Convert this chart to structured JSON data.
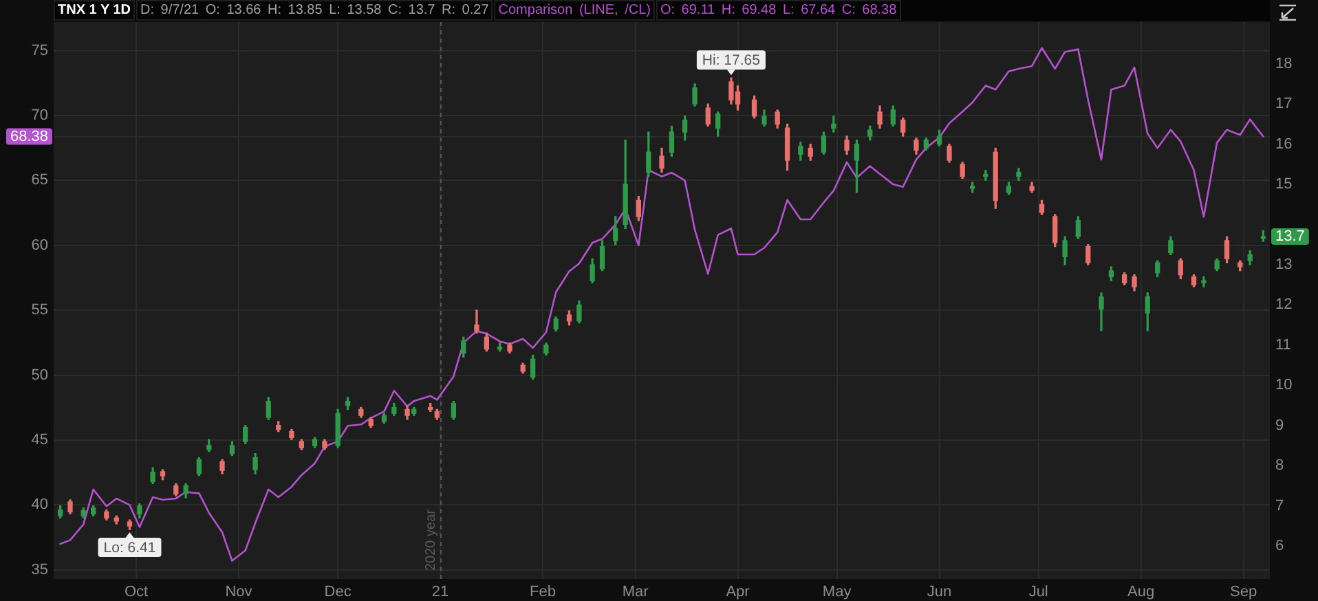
{
  "chart_data": {
    "type": "candlestick",
    "title": "TNX 1 Y 1D",
    "subtitle": "D: 9/7/21 O: 13.66 H: 13.85 L: 13.58 C: 13.7 R: 0.27",
    "x": [
      "2020-09-08",
      "2020-09-11",
      "2020-09-15",
      "2020-09-18",
      "2020-09-22",
      "2020-09-25",
      "2020-09-29",
      "2020-10-02",
      "2020-10-06",
      "2020-10-09",
      "2020-10-13",
      "2020-10-16",
      "2020-10-20",
      "2020-10-23",
      "2020-10-27",
      "2020-10-30",
      "2020-11-03",
      "2020-11-06",
      "2020-11-10",
      "2020-11-13",
      "2020-11-17",
      "2020-11-20",
      "2020-11-24",
      "2020-11-27",
      "2020-12-01",
      "2020-12-04",
      "2020-12-08",
      "2020-12-11",
      "2020-12-15",
      "2020-12-18",
      "2020-12-22",
      "2020-12-24",
      "2020-12-29",
      "2020-12-31",
      "2021-01-05",
      "2021-01-08",
      "2021-01-12",
      "2021-01-15",
      "2021-01-19",
      "2021-01-22",
      "2021-01-26",
      "2021-01-29",
      "2021-02-02",
      "2021-02-05",
      "2021-02-09",
      "2021-02-12",
      "2021-02-16",
      "2021-02-19",
      "2021-02-23",
      "2021-02-26",
      "2021-03-02",
      "2021-03-05",
      "2021-03-09",
      "2021-03-12",
      "2021-03-16",
      "2021-03-19",
      "2021-03-23",
      "2021-03-26",
      "2021-03-30",
      "2021-04-01",
      "2021-04-06",
      "2021-04-09",
      "2021-04-13",
      "2021-04-16",
      "2021-04-20",
      "2021-04-23",
      "2021-04-27",
      "2021-04-30",
      "2021-05-04",
      "2021-05-07",
      "2021-05-11",
      "2021-05-14",
      "2021-05-18",
      "2021-05-21",
      "2021-05-25",
      "2021-05-28",
      "2021-06-01",
      "2021-06-04",
      "2021-06-08",
      "2021-06-11",
      "2021-06-15",
      "2021-06-18",
      "2021-06-22",
      "2021-06-25",
      "2021-06-29",
      "2021-07-02",
      "2021-07-06",
      "2021-07-09",
      "2021-07-13",
      "2021-07-16",
      "2021-07-20",
      "2021-07-23",
      "2021-07-27",
      "2021-07-30",
      "2021-08-03",
      "2021-08-06",
      "2021-08-10",
      "2021-08-13",
      "2021-08-17",
      "2021-08-20",
      "2021-08-24",
      "2021-08-27",
      "2021-08-31",
      "2021-09-03",
      "2021-09-07"
    ],
    "xlim": [
      "2020-09-06",
      "2021-09-09"
    ],
    "xticks": [
      {
        "value": "2020-10-01",
        "label": "Oct"
      },
      {
        "value": "2020-11-01",
        "label": "Nov"
      },
      {
        "value": "2020-12-01",
        "label": "Dec"
      },
      {
        "value": "2021-01-01",
        "label": "21"
      },
      {
        "value": "2021-02-01",
        "label": "Feb"
      },
      {
        "value": "2021-03-01",
        "label": "Mar"
      },
      {
        "value": "2021-04-01",
        "label": "Apr"
      },
      {
        "value": "2021-05-01",
        "label": "May"
      },
      {
        "value": "2021-06-01",
        "label": "Jun"
      },
      {
        "value": "2021-07-01",
        "label": "Jul"
      },
      {
        "value": "2021-08-01",
        "label": "Aug"
      },
      {
        "value": "2021-09-01",
        "label": "Sep"
      }
    ],
    "ylim": [
      34.3,
      77.2
    ],
    "yticks": [
      35,
      40,
      45,
      50,
      55,
      60,
      65,
      68.38,
      70,
      75
    ],
    "y2lim": [
      5.18,
      19.04
    ],
    "y2ticks": [
      6,
      7,
      8,
      9,
      10,
      11,
      12,
      13,
      13.7,
      15,
      16,
      17,
      18
    ],
    "grid": true,
    "legend": "top left",
    "ref_lines": [
      {
        "axis": "x",
        "value": "2021-01-01",
        "label": "2020 year",
        "color": "#5a5a5a",
        "line_style": "dashed"
      }
    ],
    "annotations": [
      "O: 69.11 H: 69.48 L: 67.64 C: 68.38"
    ],
    "series": [
      {
        "axis": "y2",
        "ohlc": [
          [
            6.75,
            7.0,
            6.7,
            6.9
          ],
          [
            7.1,
            7.15,
            6.8,
            6.85
          ],
          [
            6.75,
            6.95,
            6.7,
            6.88
          ],
          [
            6.8,
            7.0,
            6.75,
            6.95
          ],
          [
            6.85,
            6.9,
            6.65,
            6.7
          ],
          [
            6.7,
            6.75,
            6.55,
            6.62
          ],
          [
            6.6,
            6.65,
            6.41,
            6.5
          ],
          [
            6.8,
            7.05,
            6.7,
            7.0
          ],
          [
            7.6,
            7.95,
            7.55,
            7.84
          ],
          [
            7.85,
            7.9,
            7.65,
            7.75
          ],
          [
            7.5,
            7.55,
            7.25,
            7.3
          ],
          [
            7.3,
            7.55,
            7.2,
            7.5
          ],
          [
            7.8,
            8.2,
            7.75,
            8.15
          ],
          [
            8.4,
            8.65,
            8.35,
            8.5
          ],
          [
            8.1,
            8.15,
            7.8,
            7.88
          ],
          [
            8.3,
            8.6,
            8.25,
            8.5
          ],
          [
            8.6,
            9.0,
            8.55,
            8.95
          ],
          [
            7.9,
            8.3,
            7.8,
            8.2
          ],
          [
            9.2,
            9.7,
            9.15,
            9.6
          ],
          [
            9.0,
            9.1,
            8.85,
            8.9
          ],
          [
            8.85,
            8.9,
            8.65,
            8.7
          ],
          [
            8.6,
            8.65,
            8.4,
            8.45
          ],
          [
            8.5,
            8.7,
            8.45,
            8.65
          ],
          [
            8.6,
            8.65,
            8.4,
            8.45
          ],
          [
            8.5,
            9.4,
            8.45,
            9.3
          ],
          [
            9.5,
            9.7,
            9.4,
            9.6
          ],
          [
            9.4,
            9.45,
            9.2,
            9.25
          ],
          [
            9.15,
            9.2,
            8.95,
            9.0
          ],
          [
            9.1,
            9.3,
            9.05,
            9.25
          ],
          [
            9.3,
            9.55,
            9.25,
            9.45
          ],
          [
            9.4,
            9.5,
            9.15,
            9.25
          ],
          [
            9.3,
            9.45,
            9.25,
            9.4
          ],
          [
            9.45,
            9.55,
            9.35,
            9.4
          ],
          [
            9.35,
            9.4,
            9.15,
            9.2
          ],
          [
            9.2,
            9.6,
            9.15,
            9.55
          ],
          [
            10.8,
            11.2,
            10.7,
            11.1
          ],
          [
            11.5,
            11.87,
            11.3,
            11.35
          ],
          [
            11.2,
            11.3,
            10.85,
            10.9
          ],
          [
            10.9,
            11.05,
            10.85,
            10.95
          ],
          [
            11.0,
            11.05,
            10.8,
            10.85
          ],
          [
            10.5,
            10.55,
            10.3,
            10.35
          ],
          [
            10.2,
            10.75,
            10.15,
            10.65
          ],
          [
            10.8,
            11.05,
            10.75,
            11.0
          ],
          [
            11.4,
            11.7,
            11.35,
            11.65
          ],
          [
            11.75,
            11.85,
            11.5,
            11.6
          ],
          [
            11.6,
            12.1,
            11.55,
            12.0
          ],
          [
            12.6,
            13.15,
            12.55,
            13.0
          ],
          [
            12.9,
            13.6,
            12.85,
            13.45
          ],
          [
            13.6,
            14.2,
            13.5,
            13.9
          ],
          [
            14.0,
            16.1,
            13.9,
            15.0
          ],
          [
            14.6,
            14.7,
            14.1,
            14.2
          ],
          [
            15.3,
            16.3,
            15.2,
            15.8
          ],
          [
            15.7,
            15.9,
            15.3,
            15.4
          ],
          [
            15.8,
            16.45,
            15.7,
            16.3
          ],
          [
            16.3,
            16.7,
            16.1,
            16.6
          ],
          [
            17.0,
            17.5,
            16.95,
            17.4
          ],
          [
            16.9,
            17.0,
            16.45,
            16.5
          ],
          [
            16.4,
            16.8,
            16.2,
            16.75
          ],
          [
            17.55,
            17.65,
            17.0,
            17.1
          ],
          [
            17.3,
            17.45,
            16.85,
            17.0
          ],
          [
            17.1,
            17.2,
            16.65,
            16.7
          ],
          [
            16.5,
            16.85,
            16.45,
            16.7
          ],
          [
            16.8,
            16.85,
            16.4,
            16.5
          ],
          [
            16.4,
            16.5,
            15.35,
            15.6
          ],
          [
            15.75,
            16.05,
            15.6,
            15.95
          ],
          [
            15.9,
            16.0,
            15.6,
            15.7
          ],
          [
            15.8,
            16.3,
            15.75,
            16.2
          ],
          [
            16.4,
            16.7,
            16.3,
            16.5
          ],
          [
            16.1,
            16.2,
            15.75,
            15.85
          ],
          [
            15.6,
            16.1,
            14.8,
            16.0
          ],
          [
            16.2,
            16.45,
            16.1,
            16.35
          ],
          [
            16.8,
            16.95,
            16.4,
            16.5
          ],
          [
            16.5,
            16.95,
            16.45,
            16.85
          ],
          [
            16.6,
            16.65,
            16.2,
            16.3
          ],
          [
            16.1,
            16.15,
            15.75,
            15.85
          ],
          [
            15.9,
            16.15,
            15.85,
            16.1
          ],
          [
            16.0,
            16.35,
            15.95,
            16.2
          ],
          [
            15.95,
            16.0,
            15.55,
            15.6
          ],
          [
            15.5,
            15.55,
            15.15,
            15.2
          ],
          [
            14.9,
            15.05,
            14.8,
            14.95
          ],
          [
            15.2,
            15.35,
            15.1,
            15.25
          ],
          [
            15.8,
            15.9,
            14.4,
            14.6
          ],
          [
            14.8,
            15.05,
            14.75,
            14.95
          ],
          [
            15.2,
            15.4,
            15.1,
            15.3
          ],
          [
            14.95,
            15.05,
            14.8,
            14.85
          ],
          [
            14.5,
            14.6,
            14.25,
            14.3
          ],
          [
            14.2,
            14.25,
            13.45,
            13.55
          ],
          [
            13.2,
            13.7,
            13.0,
            13.6
          ],
          [
            13.7,
            14.2,
            13.65,
            14.1
          ],
          [
            13.45,
            13.5,
            13.0,
            13.05
          ],
          [
            11.9,
            12.3,
            11.36,
            12.2
          ],
          [
            12.7,
            12.95,
            12.6,
            12.85
          ],
          [
            12.75,
            12.8,
            12.5,
            12.55
          ],
          [
            12.7,
            12.75,
            12.35,
            12.45
          ],
          [
            11.8,
            12.3,
            11.36,
            12.2
          ],
          [
            12.8,
            13.1,
            12.7,
            13.05
          ],
          [
            13.3,
            13.7,
            13.25,
            13.6
          ],
          [
            13.1,
            13.15,
            12.65,
            12.75
          ],
          [
            12.7,
            12.75,
            12.45,
            12.5
          ],
          [
            12.55,
            12.7,
            12.45,
            12.6
          ],
          [
            12.9,
            13.15,
            12.85,
            13.1
          ],
          [
            13.6,
            13.7,
            13.05,
            13.15
          ],
          [
            13.05,
            13.1,
            12.85,
            12.95
          ],
          [
            13.1,
            13.35,
            13.0,
            13.25
          ],
          [
            13.66,
            13.85,
            13.58,
            13.7
          ]
        ],
        "colors": [
          "#2f9a4a",
          "#e8716b",
          "#2f9a4a",
          "#2f9a4a",
          "#e8716b",
          "#e8716b",
          "#e8716b",
          "#2f9a4a",
          "#2f9a4a",
          "#e8716b",
          "#e8716b",
          "#2f9a4a",
          "#2f9a4a",
          "#2f9a4a",
          "#e8716b",
          "#2f9a4a",
          "#2f9a4a",
          "#2f9a4a",
          "#2f9a4a",
          "#e8716b",
          "#e8716b",
          "#e8716b",
          "#2f9a4a",
          "#e8716b",
          "#2f9a4a",
          "#2f9a4a",
          "#e8716b",
          "#e8716b",
          "#2f9a4a",
          "#2f9a4a",
          "#e8716b",
          "#2f9a4a",
          "#e8716b",
          "#e8716b",
          "#2f9a4a",
          "#2f9a4a",
          "#e8716b",
          "#e8716b",
          "#2f9a4a",
          "#e8716b",
          "#e8716b",
          "#2f9a4a",
          "#2f9a4a",
          "#2f9a4a",
          "#e8716b",
          "#2f9a4a",
          "#2f9a4a",
          "#2f9a4a",
          "#2f9a4a",
          "#2f9a4a",
          "#e8716b",
          "#2f9a4a",
          "#e8716b",
          "#2f9a4a",
          "#2f9a4a",
          "#2f9a4a",
          "#e8716b",
          "#2f9a4a",
          "#e8716b",
          "#e8716b",
          "#e8716b",
          "#2f9a4a",
          "#e8716b",
          "#e8716b",
          "#2f9a4a",
          "#e8716b",
          "#2f9a4a",
          "#2f9a4a",
          "#e8716b",
          "#2f9a4a",
          "#2f9a4a",
          "#e8716b",
          "#2f9a4a",
          "#e8716b",
          "#e8716b",
          "#2f9a4a",
          "#2f9a4a",
          "#e8716b",
          "#e8716b",
          "#2f9a4a",
          "#2f9a4a",
          "#e8716b",
          "#2f9a4a",
          "#2f9a4a",
          "#e8716b",
          "#e8716b",
          "#e8716b",
          "#2f9a4a",
          "#2f9a4a",
          "#e8716b",
          "#2f9a4a",
          "#2f9a4a",
          "#e8716b",
          "#e8716b",
          "#2f9a4a",
          "#2f9a4a",
          "#2f9a4a",
          "#e8716b",
          "#e8716b",
          "#2f9a4a",
          "#2f9a4a",
          "#e8716b",
          "#e8716b",
          "#2f9a4a",
          "#2f9a4a"
        ],
        "value_labels": [
          null,
          null,
          null,
          null,
          null,
          null,
          "Lo: 6.41",
          null,
          null,
          null,
          null,
          null,
          null,
          null,
          null,
          null,
          null,
          null,
          null,
          null,
          null,
          null,
          null,
          null,
          null,
          null,
          null,
          null,
          null,
          null,
          null,
          null,
          null,
          null,
          null,
          null,
          null,
          null,
          null,
          null,
          null,
          null,
          null,
          null,
          null,
          null,
          null,
          null,
          null,
          null,
          null,
          null,
          null,
          null,
          null,
          null,
          null,
          null,
          "Hi: 17.65",
          null,
          null,
          null,
          null,
          null,
          null,
          null,
          null,
          null,
          null,
          null,
          null,
          null,
          null,
          null,
          null,
          null,
          null,
          null,
          null,
          null,
          null,
          null,
          null,
          null,
          null,
          null,
          null,
          null,
          null,
          null,
          null,
          null,
          null,
          null,
          null,
          null,
          null,
          null,
          null,
          null,
          null,
          null,
          null,
          null,
          null
        ]
      },
      {
        "type": "line",
        "name": "Comparison (LINE, /CL)",
        "color": "#b452cf",
        "values": [
          37.0,
          37.3,
          38.5,
          41.2,
          39.9,
          40.5,
          40.0,
          38.3,
          40.6,
          40.4,
          40.5,
          41.0,
          40.9,
          39.4,
          37.9,
          35.7,
          36.5,
          38.6,
          41.2,
          40.6,
          41.4,
          42.3,
          43.2,
          44.5,
          44.9,
          46.1,
          46.2,
          46.7,
          47.2,
          48.8,
          47.6,
          48.0,
          48.4,
          48.1,
          49.9,
          52.5,
          53.4,
          53.2,
          52.6,
          52.4,
          52.8,
          52.1,
          53.3,
          56.4,
          58.0,
          58.6,
          60.2,
          60.5,
          61.6,
          62.8,
          60.0,
          65.8,
          65.3,
          65.6,
          65.0,
          61.2,
          57.8,
          60.8,
          61.3,
          59.3,
          59.3,
          59.8,
          61.0,
          63.5,
          62.0,
          62.0,
          63.3,
          64.2,
          66.4,
          65.2,
          66.1,
          65.5,
          64.7,
          64.5,
          66.6,
          67.5,
          68.3,
          69.4,
          70.3,
          71.0,
          72.3,
          72.0,
          73.4,
          73.6,
          73.8,
          75.2,
          73.6,
          74.9,
          75.1,
          71.2,
          66.6,
          72.0,
          72.3,
          73.7,
          68.6,
          67.5,
          68.9,
          68.0,
          65.8,
          62.2,
          67.9,
          68.9,
          68.5,
          69.7,
          68.38
        ]
      }
    ]
  }
}
